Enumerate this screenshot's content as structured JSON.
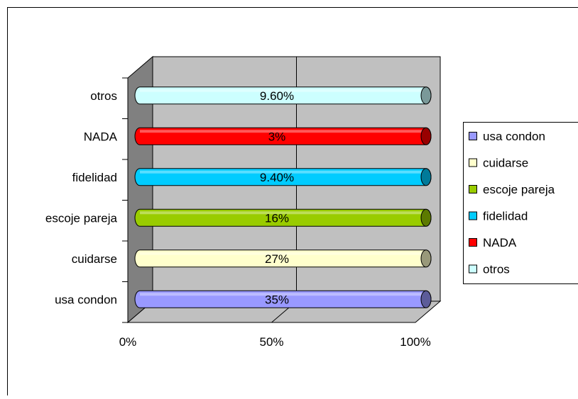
{
  "chart_data": {
    "type": "bar",
    "orientation": "horizontal",
    "style": "3d-cylinder-100pct-stacked",
    "categories": [
      "usa condon",
      "cuidarse",
      "escoje pareja",
      "fidelidad",
      "NADA",
      "otros"
    ],
    "values": [
      35,
      27,
      16,
      9.4,
      3,
      9.6
    ],
    "data_labels": [
      "35%",
      "27%",
      "16%",
      "9.40%",
      "3%",
      "9.60%"
    ],
    "colors": [
      "#9999ff",
      "#ffffcc",
      "#99cc00",
      "#00ccff",
      "#ff0000",
      "#ccffff"
    ],
    "x_ticks": [
      "0%",
      "50%",
      "100%"
    ],
    "xlim": [
      0,
      100
    ],
    "grid": true,
    "legend_position": "right",
    "legend": [
      "usa condon",
      "cuidarse",
      "escoje pareja",
      "fidelidad",
      "NADA",
      "otros"
    ]
  }
}
